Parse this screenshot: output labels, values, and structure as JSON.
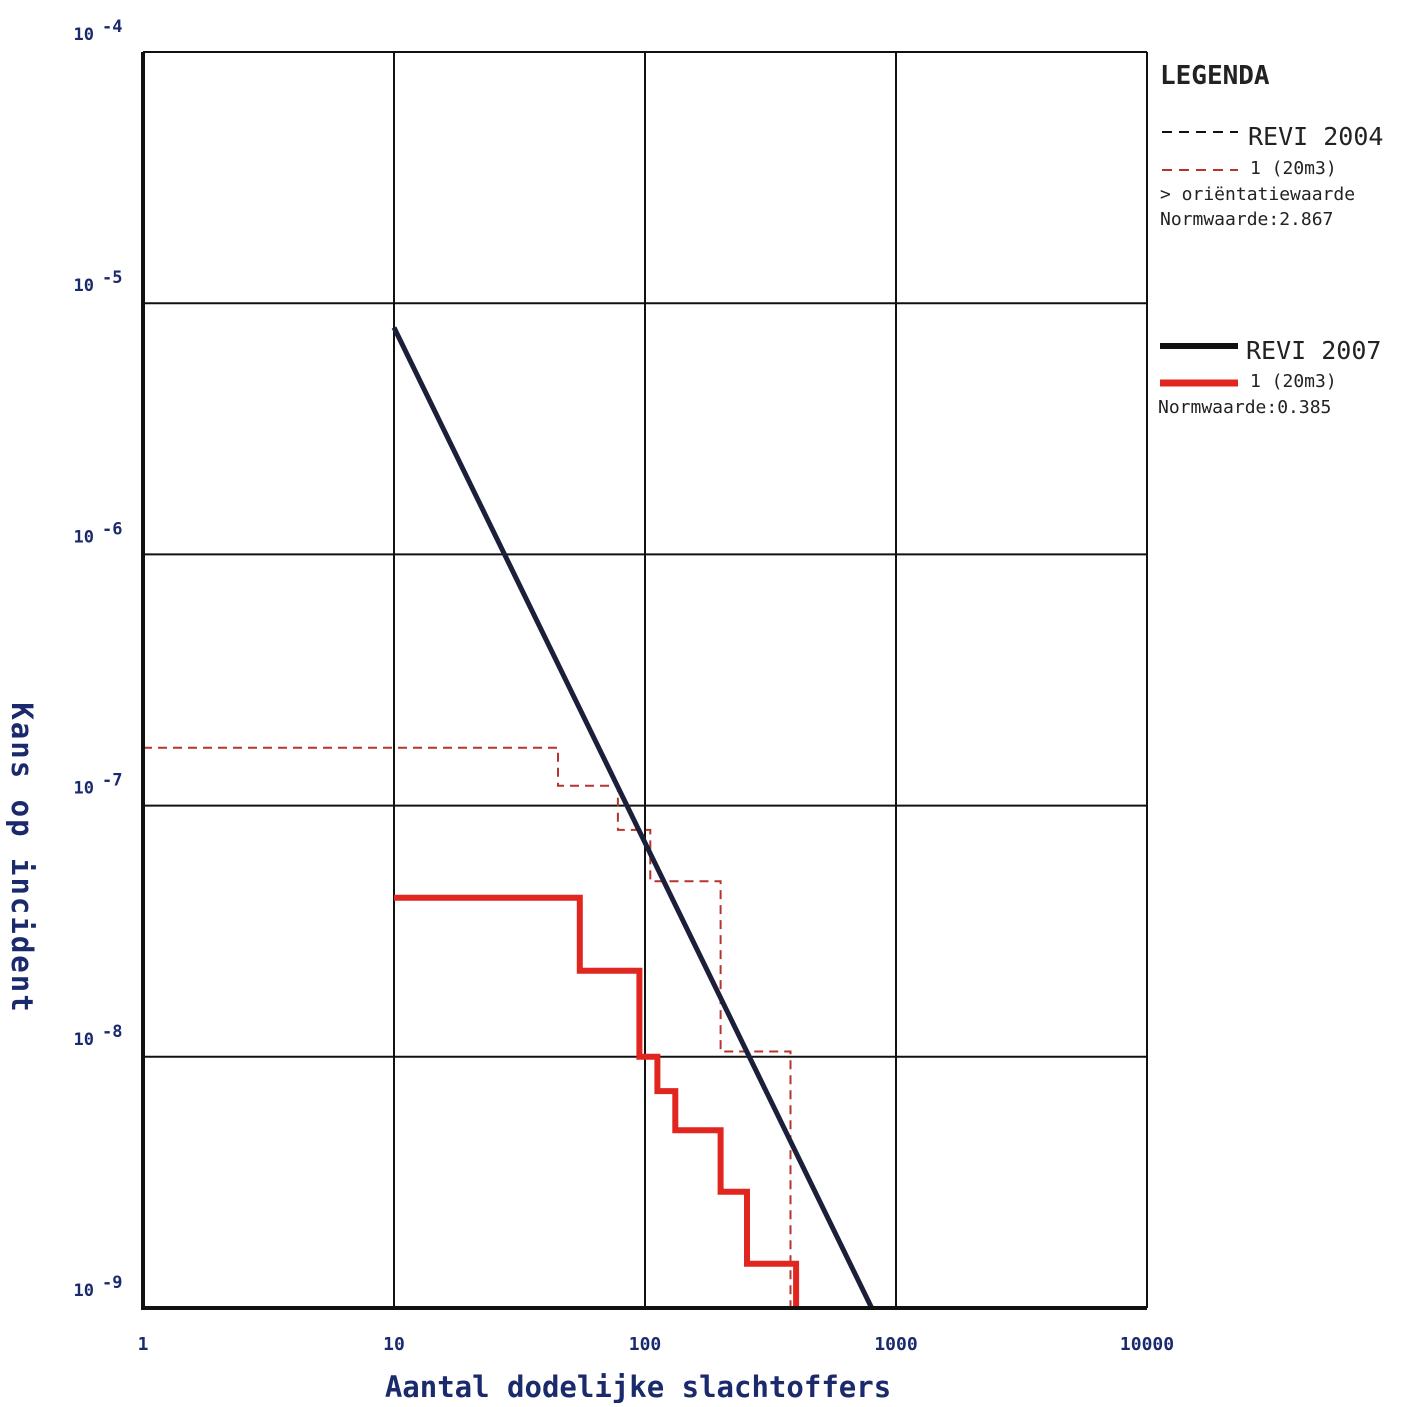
{
  "chart_data": {
    "type": "line",
    "xscale": "log",
    "yscale": "log",
    "xlim": [
      1,
      10000
    ],
    "ylim": [
      1e-09,
      0.0001
    ],
    "grid": true,
    "xlabel": "Aantal dodelijke slachtoffers",
    "ylabel": "Kans op incident",
    "x_ticks": [
      {
        "value": 1,
        "label": "1"
      },
      {
        "value": 10,
        "label": "10"
      },
      {
        "value": 100,
        "label": "100"
      },
      {
        "value": 1000,
        "label": "1000"
      },
      {
        "value": 10000,
        "label": "10000"
      }
    ],
    "y_ticks": [
      {
        "value": 0.0001,
        "base": "10",
        "exp": "-4"
      },
      {
        "value": 1e-05,
        "base": "10",
        "exp": "-5"
      },
      {
        "value": 1e-06,
        "base": "10",
        "exp": "-6"
      },
      {
        "value": 1e-07,
        "base": "10",
        "exp": "-7"
      },
      {
        "value": 1e-08,
        "base": "10",
        "exp": "-8"
      },
      {
        "value": 1e-09,
        "base": "10",
        "exp": "-9"
      }
    ],
    "legend": {
      "title": "LEGENDA",
      "position": "right",
      "groups": [
        {
          "header": "REVI 2004",
          "header_series": "revi2004-norm",
          "item": "1 (20m3)",
          "item_series": "revi2004-scenario",
          "notes": [
            "> oriëntatiewaarde",
            "Normwaarde:2.867"
          ]
        },
        {
          "header": "REVI 2007",
          "header_series": "revi2007-norm",
          "item": "1 (20m3)",
          "item_series": "revi2007-scenario",
          "notes": [
            "Normwaarde:0.385"
          ]
        }
      ]
    },
    "series": [
      {
        "id": "revi2007-norm",
        "name": "REVI 2007",
        "color": "#1c1f3a",
        "style": "solid",
        "width": 5,
        "points": [
          [
            10,
            8e-06
          ],
          [
            800,
            1e-09
          ]
        ]
      },
      {
        "id": "revi2004-scenario",
        "name": "1 (20m3)",
        "color": "#b5352e",
        "style": "dashed",
        "width": 2,
        "points": [
          [
            1,
            1.7e-07
          ],
          [
            45,
            1.7e-07
          ],
          [
            45,
            1.2e-07
          ],
          [
            78,
            1.2e-07
          ],
          [
            78,
            8e-08
          ],
          [
            105,
            8e-08
          ],
          [
            105,
            5e-08
          ],
          [
            200,
            5e-08
          ],
          [
            200,
            1.05e-08
          ],
          [
            380,
            1.05e-08
          ],
          [
            380,
            1e-09
          ]
        ]
      },
      {
        "id": "revi2007-scenario",
        "name": "1 (20m3)",
        "color": "#e0261e",
        "style": "solid",
        "width": 6,
        "points": [
          [
            10,
            4.3e-08
          ],
          [
            55,
            4.3e-08
          ],
          [
            55,
            2.2e-08
          ],
          [
            95,
            2.2e-08
          ],
          [
            95,
            1e-08
          ],
          [
            112,
            1e-08
          ],
          [
            112,
            7.3e-09
          ],
          [
            132,
            7.3e-09
          ],
          [
            132,
            5.1e-09
          ],
          [
            200,
            5.1e-09
          ],
          [
            200,
            2.9e-09
          ],
          [
            255,
            2.9e-09
          ],
          [
            255,
            1.5e-09
          ],
          [
            400,
            1.5e-09
          ],
          [
            400,
            1e-09
          ]
        ]
      },
      {
        "id": "revi2004-norm",
        "name": "REVI 2004",
        "color": "#111111",
        "style": "dashed",
        "width": 2,
        "points": []
      }
    ]
  }
}
